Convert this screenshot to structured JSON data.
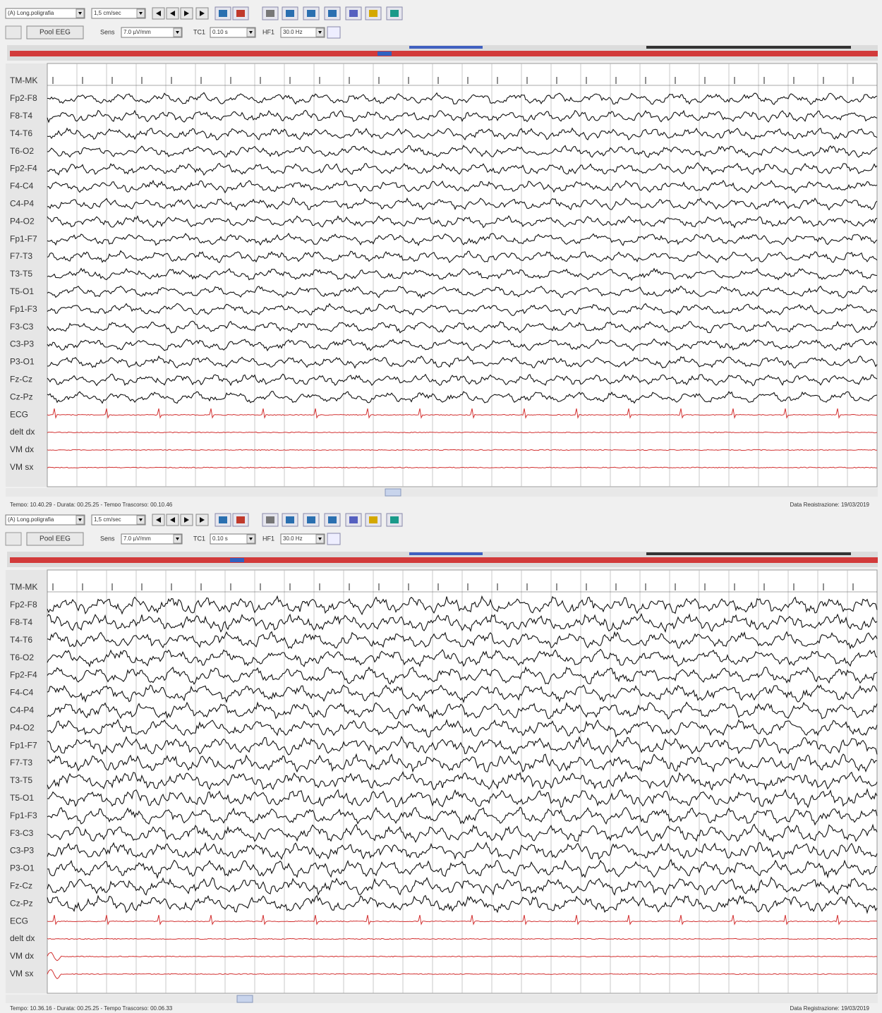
{
  "panels": [
    {
      "toolbar": {
        "montage": "(A) Long.poligrafia",
        "speed": "1,5 cm/sec",
        "pool_button": "Pool EEG",
        "sens_label": "Sens",
        "sens": "7.0 µV/mm",
        "tc_label": "TC1",
        "tc": "0.10 s",
        "hf_label": "HF1",
        "hf": "30.0 Hz"
      },
      "channels": [
        "TM-MK",
        "Fp2-F8",
        "F8-T4",
        "T4-T6",
        "T6-O2",
        "Fp2-F4",
        "F4-C4",
        "C4-P4",
        "P4-O2",
        "Fp1-F7",
        "F7-T3",
        "T3-T5",
        "T5-O1",
        "Fp1-F3",
        "F3-C3",
        "C3-P3",
        "P3-O1",
        "Fz-Cz",
        "Cz-Pz",
        "ECG",
        "delt dx",
        "VM dx",
        "VM sx"
      ],
      "status_left": "Tempo: 10.40.29  - Durata: 00.25.25 - Tempo Trascorso: 00.10.46",
      "status_right": "Data Registrazione: 19/03/2019"
    },
    {
      "toolbar": {
        "montage": "(A) Long.poligrafia",
        "speed": "1,5 cm/sec",
        "pool_button": "Pool EEG",
        "sens_label": "Sens",
        "sens": "7.0 µV/mm",
        "tc_label": "TC1",
        "tc": "0.10 s",
        "hf_label": "HF1",
        "hf": "30.0 Hz"
      },
      "channels": [
        "TM-MK",
        "Fp2-F8",
        "F8-T4",
        "T4-T6",
        "T6-O2",
        "Fp2-F4",
        "F4-C4",
        "C4-P4",
        "P4-O2",
        "Fp1-F7",
        "F7-T3",
        "T3-T5",
        "T5-O1",
        "Fp1-F3",
        "F3-C3",
        "C3-P3",
        "P3-O1",
        "Fz-Cz",
        "Cz-Pz",
        "ECG",
        "delt dx",
        "VM dx",
        "VM sx"
      ],
      "status_left": "Tempo: 10.36.16  - Durata: 00.25.25 - Tempo Trascorso: 00.06.33",
      "status_right": "Data Registrazione: 19/03/2019"
    }
  ]
}
